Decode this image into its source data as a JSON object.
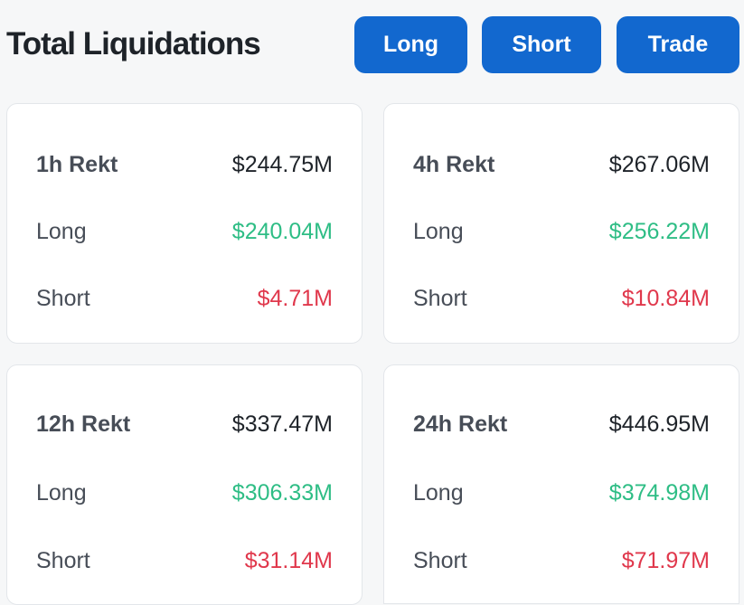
{
  "header": {
    "title": "Total Liquidations",
    "buttons": {
      "long": "Long",
      "short": "Short",
      "trade": "Trade"
    }
  },
  "cards": [
    {
      "period": "1h Rekt",
      "total": "$244.75M",
      "long_label": "Long",
      "long": "$240.04M",
      "short_label": "Short",
      "short": "$4.71M"
    },
    {
      "period": "4h Rekt",
      "total": "$267.06M",
      "long_label": "Long",
      "long": "$256.22M",
      "short_label": "Short",
      "short": "$10.84M"
    },
    {
      "period": "12h Rekt",
      "total": "$337.47M",
      "long_label": "Long",
      "long": "$306.33M",
      "short_label": "Short",
      "short": "$31.14M"
    },
    {
      "period": "24h Rekt",
      "total": "$446.95M",
      "long_label": "Long",
      "long": "$374.98M",
      "short_label": "Short",
      "short": "$71.97M"
    }
  ],
  "colors": {
    "button_blue": "#1268cf",
    "long_green": "#2ebd85",
    "short_red": "#e0384c",
    "text_dark": "#1e2329"
  }
}
